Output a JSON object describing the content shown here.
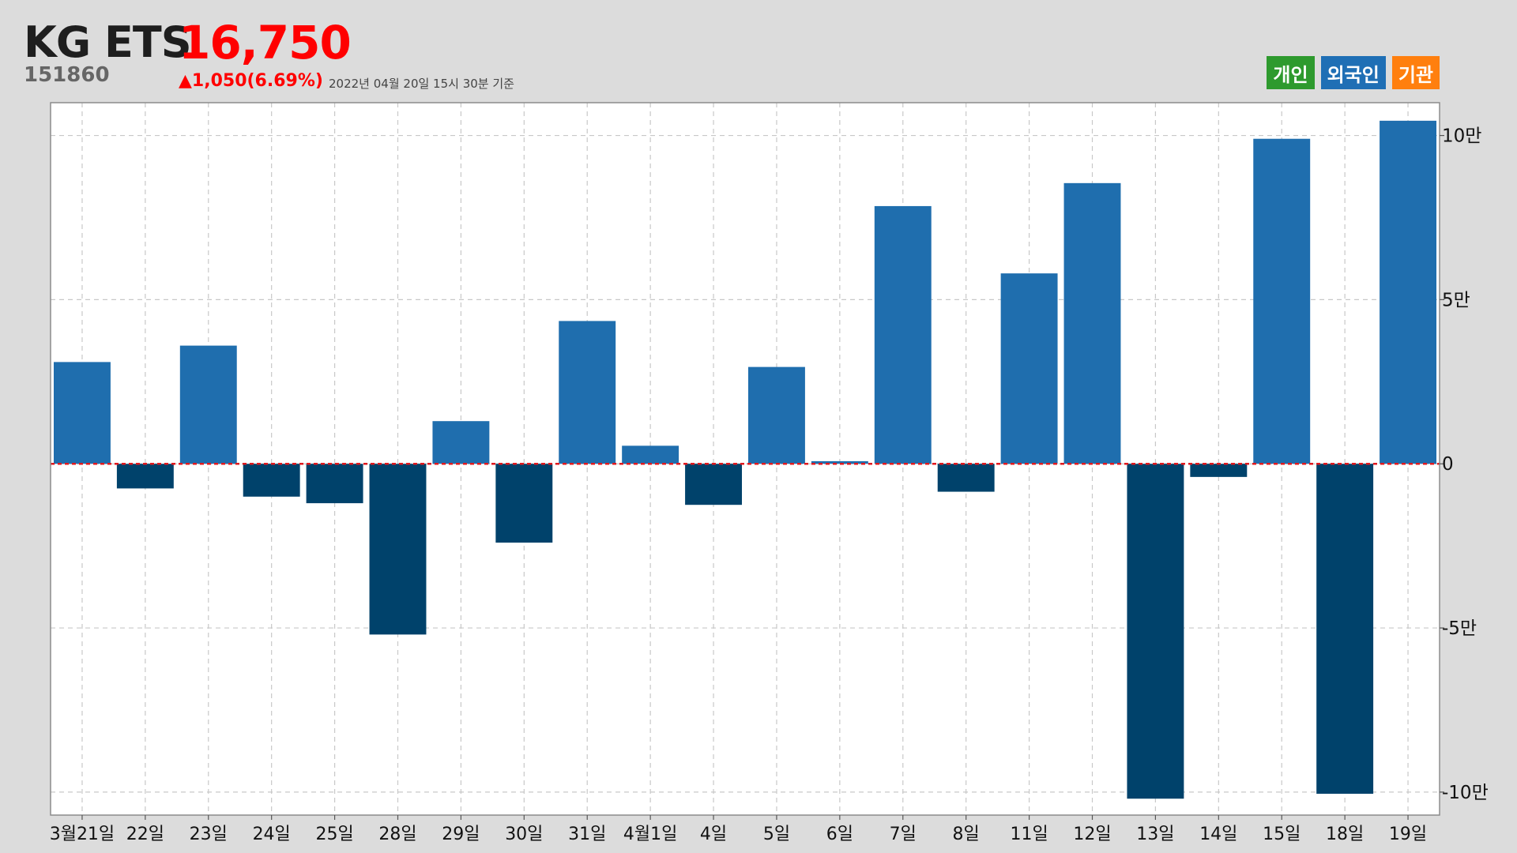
{
  "header": {
    "name": "KG ETS",
    "price": "16,750",
    "code": "151860",
    "change": "▲1,050(6.69%)",
    "timestamp": "2022년 04월 20일 15시 30분 기준"
  },
  "legend": [
    {
      "label": "개인",
      "color": "#2e9a2e"
    },
    {
      "label": "외국인",
      "color": "#1f6fb5"
    },
    {
      "label": "기관",
      "color": "#ff7f0e"
    }
  ],
  "chart_data": {
    "type": "bar",
    "categories": [
      "3월21일",
      "22일",
      "23일",
      "24일",
      "25일",
      "28일",
      "29일",
      "30일",
      "31일",
      "4월1일",
      "4일",
      "5일",
      "6일",
      "7일",
      "8일",
      "11일",
      "12일",
      "13일",
      "14일",
      "15일",
      "18일",
      "19일"
    ],
    "series": [
      {
        "name": "외국인",
        "values": [
          31000,
          -7500,
          36000,
          -10000,
          -12000,
          -52000,
          13000,
          -24000,
          43500,
          5500,
          -12500,
          29500,
          800,
          78500,
          -8500,
          58000,
          85500,
          -102000,
          -4000,
          99000,
          -100500,
          104500
        ]
      }
    ],
    "colors": {
      "positive": "#1f6eae",
      "negative": "#00426b",
      "zero_line": "#e0191f"
    },
    "ylim": [
      -107000,
      110000
    ],
    "yticks": [
      {
        "value": 100000,
        "label": "10만"
      },
      {
        "value": 50000,
        "label": "5만"
      },
      {
        "value": 0,
        "label": "0"
      },
      {
        "value": -50000,
        "label": "-5만"
      },
      {
        "value": -100000,
        "label": "-10만"
      }
    ],
    "grid": true
  }
}
